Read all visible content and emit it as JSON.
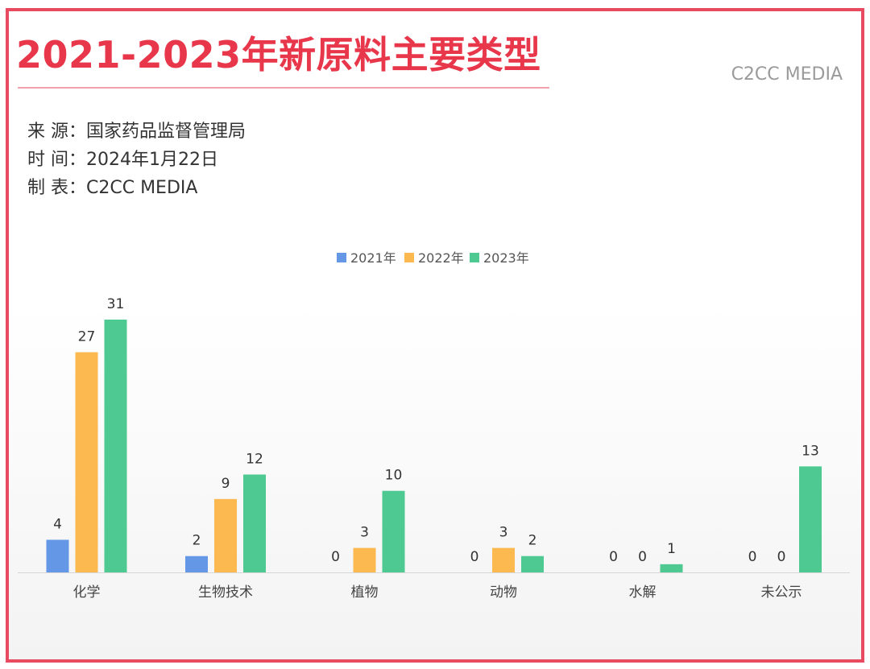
{
  "header": {
    "title": "2021-2023年新原料主要类型",
    "brand": "C2CC MEDIA"
  },
  "meta": [
    {
      "label": "来 源：",
      "value": "国家药品监督管理局"
    },
    {
      "label": "时 间：",
      "value": "2024年1月22日"
    },
    {
      "label": "制 表：",
      "value": "C2CC  MEDIA"
    }
  ],
  "colors": {
    "s2021": "#6497e6",
    "s2022": "#fbb950",
    "s2023": "#4ec991"
  },
  "chart_data": {
    "type": "bar",
    "title": "",
    "xlabel": "",
    "ylabel": "",
    "categories": [
      "化学",
      "生物技术",
      "植物",
      "动物",
      "水解",
      "未公示"
    ],
    "series": [
      {
        "name": "2021年",
        "values": [
          4,
          2,
          0,
          0,
          0,
          0
        ],
        "color": "#6497e6"
      },
      {
        "name": "2022年",
        "values": [
          27,
          9,
          3,
          3,
          0,
          0
        ],
        "color": "#fbb950"
      },
      {
        "name": "2023年",
        "values": [
          31,
          12,
          10,
          2,
          1,
          13
        ],
        "color": "#4ec991"
      }
    ],
    "ylim": [
      0,
      31
    ],
    "legend": "top-center",
    "grid": false,
    "data_labels": true
  }
}
